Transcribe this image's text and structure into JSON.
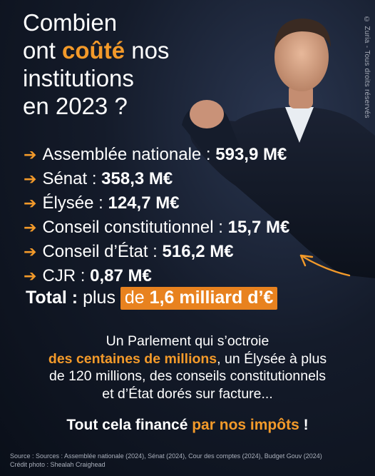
{
  "title": {
    "line1": "Combien",
    "line2_pre": "ont ",
    "line2_accent": "coûté",
    "line2_post": " nos",
    "line3": "institutions",
    "line4": "en 2023 ?"
  },
  "watermark": "© Zuria - Tous droits réservés",
  "arrow_glyph": "➔",
  "items": [
    {
      "label": "Assemblée nationale : ",
      "value": "593,9 M€"
    },
    {
      "label": "Sénat : ",
      "value": "358,3 M€"
    },
    {
      "label": "Élysée : ",
      "value": "124,7 M€"
    },
    {
      "label": "Conseil constitutionnel : ",
      "value": "15,7 M€"
    },
    {
      "label": "Conseil d’État : ",
      "value": "516,2 M€"
    },
    {
      "label": "CJR : ",
      "value": "0,87 M€"
    }
  ],
  "total": {
    "label": "Total :",
    "pre": " plus ",
    "hl_pre": "de ",
    "hl_bold": "1,6 milliard d’€"
  },
  "paragraph": {
    "line1": "Un Parlement qui s’octroie",
    "accent": "des centaines de millions",
    "line2_post": ", un Élysée à plus",
    "line3": "de 120 millions, des conseils constitutionnels",
    "line4": "et d’État dorés sur facture..."
  },
  "closing": {
    "pre": "Tout cela financé ",
    "accent": "par nos impôts",
    "post": " !"
  },
  "source": "Source : Sources : Assemblée nationale (2024), Sénat (2024), Cour des comptes (2024), Budget Gouv (2024)",
  "credit": "Crédit photo : Shealah Craighead",
  "colors": {
    "accent": "#f39a2a",
    "highlight": "#e8821f",
    "background": "#0d1320"
  }
}
